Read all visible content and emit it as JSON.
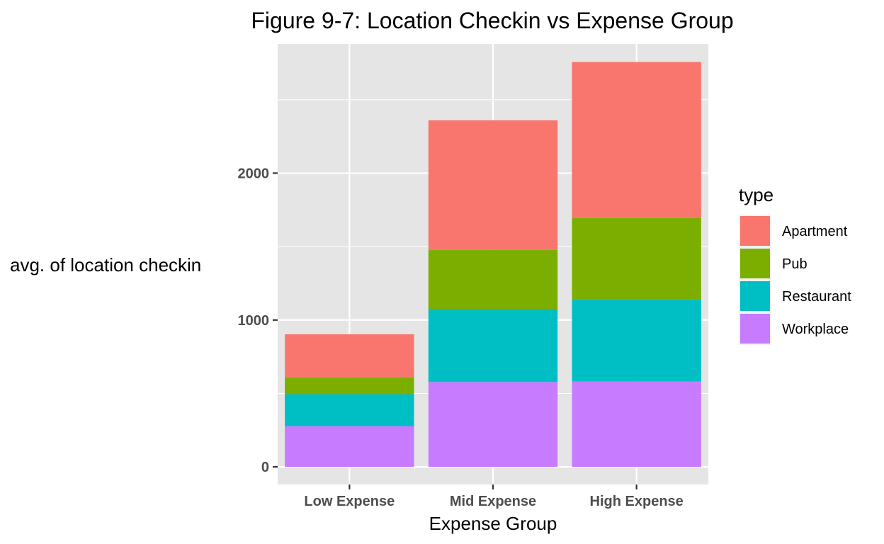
{
  "chart_data": {
    "type": "bar",
    "stacked": true,
    "title": "Figure 9-7: Location Checkin vs Expense Group",
    "xlabel": "Expense Group",
    "ylabel": "avg. of location checkin",
    "categories": [
      "Low Expense",
      "Mid Expense",
      "High Expense"
    ],
    "series": [
      {
        "name": "Workplace",
        "color": "#C77CFF",
        "values": [
          278,
          578,
          582
        ]
      },
      {
        "name": "Restaurant",
        "color": "#00BFC4",
        "values": [
          217,
          498,
          560
        ]
      },
      {
        "name": "Pub",
        "color": "#7CAE00",
        "values": [
          113,
          402,
          552
        ]
      },
      {
        "name": "Apartment",
        "color": "#F8766D",
        "values": [
          295,
          882,
          1063
        ]
      }
    ],
    "ylim": [
      -120,
      2880
    ],
    "yticks": [
      0,
      1000,
      2000
    ],
    "ytick_labels": [
      "0",
      "1000",
      "2000"
    ],
    "grid": true,
    "legend": {
      "title": "type",
      "position": "right",
      "items": [
        "Apartment",
        "Pub",
        "Restaurant",
        "Workplace"
      ]
    },
    "colors": {
      "panel_background": "#E5E5E5",
      "grid": "#FFFFFF",
      "Apartment": "#F8766D",
      "Pub": "#7CAE00",
      "Restaurant": "#00BFC4",
      "Workplace": "#C77CFF"
    }
  }
}
